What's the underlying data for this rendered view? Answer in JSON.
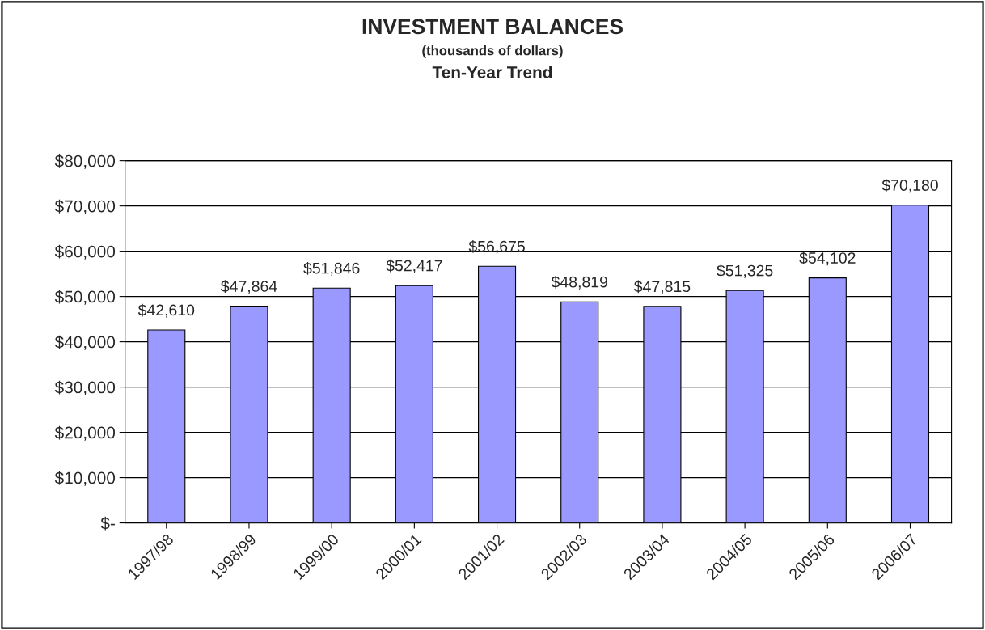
{
  "chart_data": {
    "type": "bar",
    "title": "INVESTMENT BALANCES",
    "subtitle": "(thousands of dollars)",
    "annotations": [
      "Ten-Year Trend"
    ],
    "categories": [
      "1997/98",
      "1998/99",
      "1999/00",
      "2000/01",
      "2001/02",
      "2002/03",
      "2003/04",
      "2004/05",
      "2005/06",
      "2006/07"
    ],
    "values": [
      42610,
      47864,
      51846,
      52417,
      56675,
      48819,
      47815,
      51325,
      54102,
      70180
    ],
    "value_labels": [
      "$42,610",
      "$47,864",
      "$51,846",
      "$52,417",
      "$56,675",
      "$48,819",
      "$47,815",
      "$51,325",
      "$54,102",
      "$70,180"
    ],
    "color": "#9999ff",
    "ylim": [
      0,
      80000
    ],
    "yticks": [
      {
        "value": 0,
        "label": "$-"
      },
      {
        "value": 10000,
        "label": "$10,000"
      },
      {
        "value": 20000,
        "label": "$20,000"
      },
      {
        "value": 30000,
        "label": "$30,000"
      },
      {
        "value": 40000,
        "label": "$40,000"
      },
      {
        "value": 50000,
        "label": "$50,000"
      },
      {
        "value": 60000,
        "label": "$60,000"
      },
      {
        "value": 70000,
        "label": "$70,000"
      },
      {
        "value": 80000,
        "label": "$80,000"
      }
    ],
    "grid": "y",
    "legend": false
  }
}
